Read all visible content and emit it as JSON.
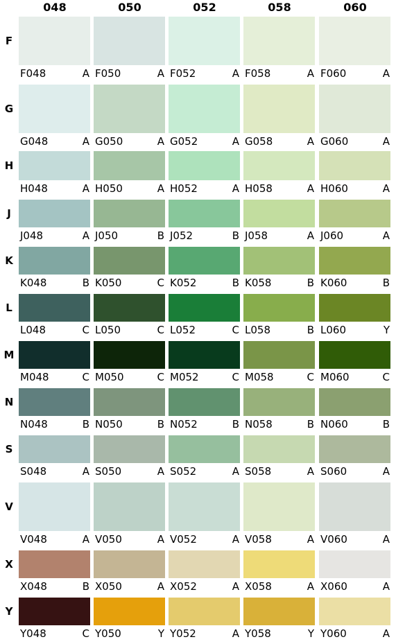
{
  "columns": [
    "048",
    "050",
    "052",
    "058",
    "060"
  ],
  "rows": [
    {
      "letter": "F",
      "cells": [
        {
          "code": "F048",
          "grade": "A",
          "color": "#e7eeea"
        },
        {
          "code": "F050",
          "grade": "A",
          "color": "#d8e4e2"
        },
        {
          "code": "F052",
          "grade": "A",
          "color": "#dbf1e6"
        },
        {
          "code": "F058",
          "grade": "A",
          "color": "#e5efd8"
        },
        {
          "code": "F060",
          "grade": "A",
          "color": "#e9efe3"
        }
      ]
    },
    {
      "letter": "G",
      "cells": [
        {
          "code": "G048",
          "grade": "A",
          "color": "#deedec"
        },
        {
          "code": "G050",
          "grade": "A",
          "color": "#c4d9c5"
        },
        {
          "code": "G052",
          "grade": "A",
          "color": "#c5ecd3"
        },
        {
          "code": "G058",
          "grade": "A",
          "color": "#e0eac5"
        },
        {
          "code": "G060",
          "grade": "A",
          "color": "#e0e9d8"
        }
      ]
    },
    {
      "letter": "H",
      "cells": [
        {
          "code": "H048",
          "grade": "A",
          "color": "#c3dbd9"
        },
        {
          "code": "H050",
          "grade": "A",
          "color": "#a7c6a7"
        },
        {
          "code": "H052",
          "grade": "A",
          "color": "#aee2bc"
        },
        {
          "code": "H058",
          "grade": "A",
          "color": "#d4e8be"
        },
        {
          "code": "H060",
          "grade": "A",
          "color": "#d5e1b7"
        }
      ]
    },
    {
      "letter": "J",
      "cells": [
        {
          "code": "J048",
          "grade": "A",
          "color": "#a4c4c3"
        },
        {
          "code": "J050",
          "grade": "B",
          "color": "#97b793"
        },
        {
          "code": "J052",
          "grade": "B",
          "color": "#88c79b"
        },
        {
          "code": "J058",
          "grade": "A",
          "color": "#c2dd9f"
        },
        {
          "code": "J060",
          "grade": "A",
          "color": "#b7c98a"
        }
      ]
    },
    {
      "letter": "K",
      "cells": [
        {
          "code": "K048",
          "grade": "B",
          "color": "#81a7a2"
        },
        {
          "code": "K050",
          "grade": "C",
          "color": "#78966d"
        },
        {
          "code": "K052",
          "grade": "B",
          "color": "#58a872"
        },
        {
          "code": "K058",
          "grade": "B",
          "color": "#a2c177"
        },
        {
          "code": "K060",
          "grade": "B",
          "color": "#93a84f"
        }
      ]
    },
    {
      "letter": "L",
      "cells": [
        {
          "code": "L048",
          "grade": "C",
          "color": "#3e615e"
        },
        {
          "code": "L050",
          "grade": "C",
          "color": "#2f512d"
        },
        {
          "code": "L052",
          "grade": "C",
          "color": "#1a7e38"
        },
        {
          "code": "L058",
          "grade": "B",
          "color": "#88ad4c"
        },
        {
          "code": "L060",
          "grade": "Y",
          "color": "#6b8625"
        }
      ]
    },
    {
      "letter": "M",
      "cells": [
        {
          "code": "M048",
          "grade": "C",
          "color": "#112e2c"
        },
        {
          "code": "M050",
          "grade": "C",
          "color": "#0d2509"
        },
        {
          "code": "M052",
          "grade": "C",
          "color": "#083b1d"
        },
        {
          "code": "M058",
          "grade": "C",
          "color": "#7a9548"
        },
        {
          "code": "M060",
          "grade": "C",
          "color": "#305c07"
        }
      ]
    },
    {
      "letter": "N",
      "cells": [
        {
          "code": "N048",
          "grade": "B",
          "color": "#607f7e"
        },
        {
          "code": "N050",
          "grade": "B",
          "color": "#7e957d"
        },
        {
          "code": "N052",
          "grade": "B",
          "color": "#61926f"
        },
        {
          "code": "N058",
          "grade": "B",
          "color": "#98b17b"
        },
        {
          "code": "N060",
          "grade": "B",
          "color": "#8ba070"
        }
      ]
    },
    {
      "letter": "S",
      "cells": [
        {
          "code": "S048",
          "grade": "A",
          "color": "#abc3c2"
        },
        {
          "code": "S050",
          "grade": "A",
          "color": "#a9b8aa"
        },
        {
          "code": "S052",
          "grade": "A",
          "color": "#96bf9e"
        },
        {
          "code": "S058",
          "grade": "A",
          "color": "#c6d9b1"
        },
        {
          "code": "S060",
          "grade": "A",
          "color": "#adb99d"
        }
      ]
    },
    {
      "letter": "V",
      "cells": [
        {
          "code": "V048",
          "grade": "A",
          "color": "#d6e5e6"
        },
        {
          "code": "V050",
          "grade": "A",
          "color": "#bdd2c8"
        },
        {
          "code": "V052",
          "grade": "A",
          "color": "#c9ddd4"
        },
        {
          "code": "V058",
          "grade": "A",
          "color": "#dfe9c9"
        },
        {
          "code": "V060",
          "grade": "A",
          "color": "#d7ddd8"
        }
      ]
    },
    {
      "letter": "X",
      "cells": [
        {
          "code": "X048",
          "grade": "B",
          "color": "#b2826d"
        },
        {
          "code": "X050",
          "grade": "A",
          "color": "#c4b594"
        },
        {
          "code": "X052",
          "grade": "A",
          "color": "#e2d7b2"
        },
        {
          "code": "X058",
          "grade": "A",
          "color": "#eedb78"
        },
        {
          "code": "X060",
          "grade": "A",
          "color": "#e6e5e2"
        }
      ]
    },
    {
      "letter": "Y",
      "cells": [
        {
          "code": "Y048",
          "grade": "C",
          "color": "#361212"
        },
        {
          "code": "Y050",
          "grade": "Y",
          "color": "#e5a00c"
        },
        {
          "code": "Y052",
          "grade": "A",
          "color": "#e4cb6d"
        },
        {
          "code": "Y058",
          "grade": "Y",
          "color": "#d9b139"
        },
        {
          "code": "Y060",
          "grade": "A",
          "color": "#ebdfa5"
        }
      ]
    }
  ]
}
